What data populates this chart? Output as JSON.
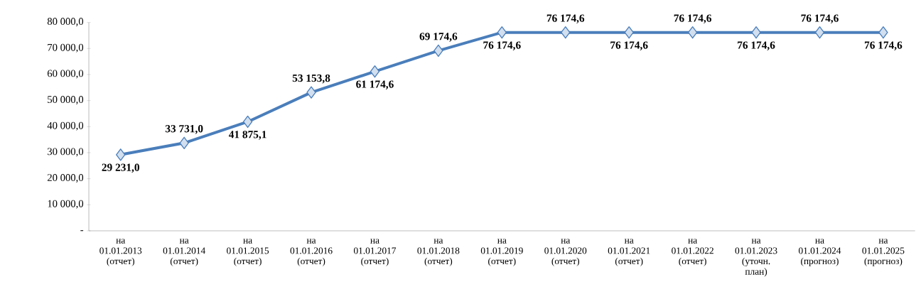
{
  "chart_data": {
    "type": "line",
    "categories": [
      "на 01.01.2013 (отчет)",
      "на 01.01.2014 (отчет)",
      "на 01.01.2015 (отчет)",
      "на 01.01.2016 (отчет)",
      "на 01.01.2017 (отчет)",
      "на 01.01.2018 (отчет)",
      "на 01.01.2019 (отчет)",
      "на 01.01.2020 (отчет)",
      "на 01.01.2021 (отчет)",
      "на 01.01.2022 (отчет)",
      "на 01.01.2023 (уточн. план)",
      "на 01.01.2024 (прогноз)",
      "на 01.01.2025 (прогноз)"
    ],
    "series": [
      {
        "color": "#4a7ebb",
        "values": [
          29231.0,
          33731.0,
          41875.1,
          53153.8,
          61174.6,
          69174.6,
          76174.6,
          76174.6,
          76174.6,
          76174.6,
          76174.6,
          76174.6,
          76174.6
        ],
        "value_labels": [
          "29 231,0",
          "33 731,0",
          "41 875,1",
          "53 153,8",
          "61 174,6",
          "69 174,6",
          "76 174,6",
          "76 174,6",
          "76 174,6",
          "76 174,6",
          "76 174,6",
          "76 174,6",
          "76 174,6"
        ]
      }
    ],
    "ylim": [
      0,
      80000
    ],
    "yticks": [
      {
        "value": 0,
        "label": "-"
      },
      {
        "value": 10000,
        "label": "10 000,0"
      },
      {
        "value": 20000,
        "label": "20 000,0"
      },
      {
        "value": 30000,
        "label": "30 000,0"
      },
      {
        "value": 40000,
        "label": "40 000,0"
      },
      {
        "value": 50000,
        "label": "50 000,0"
      },
      {
        "value": 60000,
        "label": "60 000,0"
      },
      {
        "value": 70000,
        "label": "70 000,0"
      },
      {
        "value": 80000,
        "label": "80 000,0"
      }
    ],
    "marker": "diamond",
    "line_style": "solid"
  }
}
